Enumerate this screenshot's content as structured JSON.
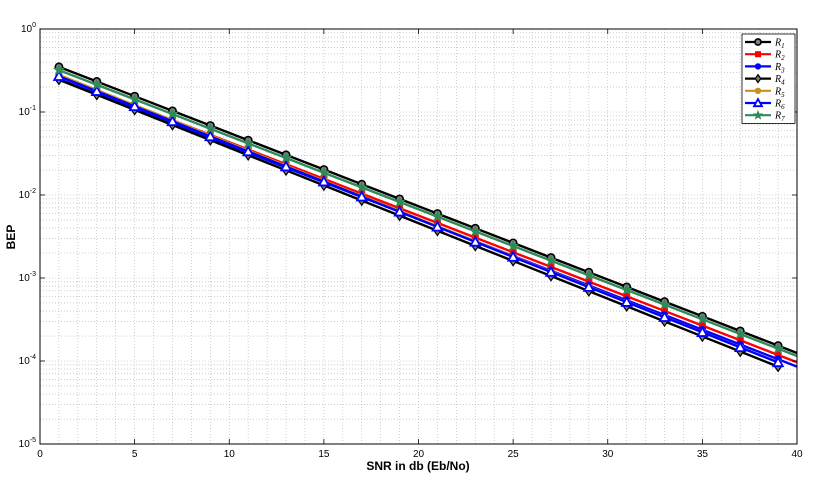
{
  "chart_data": {
    "type": "line",
    "title": "",
    "xlabel": "SNR in db (Eb/No)",
    "ylabel": "BEP",
    "xlim": [
      0,
      40
    ],
    "ylim": [
      1e-05,
      1
    ],
    "yscale": "log",
    "grid": true,
    "legend_position": "top-right",
    "x_ticks": [
      "0",
      "5",
      "10",
      "15",
      "20",
      "25",
      "30",
      "35",
      "40"
    ],
    "y_ticks": [
      {
        "base": "10",
        "exp": "0"
      },
      {
        "base": "10",
        "exp": "-1"
      },
      {
        "base": "10",
        "exp": "-2"
      },
      {
        "base": "10",
        "exp": "-3"
      },
      {
        "base": "10",
        "exp": "-4"
      },
      {
        "base": "10",
        "exp": "-5"
      }
    ],
    "x": [
      1,
      3,
      5,
      7,
      9,
      11,
      13,
      15,
      17,
      19,
      21,
      23,
      25,
      27,
      29,
      31,
      33,
      35,
      37,
      39,
      40
    ],
    "series": [
      {
        "name": "R",
        "sub": "1",
        "color": "#000000",
        "marker": "circle-open",
        "start_y": 0.35,
        "end_y": 0.000125,
        "x_end": 40
      },
      {
        "name": "R",
        "sub": "2",
        "color": "#ff0000",
        "marker": "square",
        "start_y": 0.27,
        "end_y": 9.65e-05,
        "x_end": 40
      },
      {
        "name": "R",
        "sub": "3",
        "color": "#0000ff",
        "marker": "circle",
        "start_y": 0.25,
        "end_y": 8.55e-05,
        "x_end": 40
      },
      {
        "name": "R",
        "sub": "4",
        "color": "#000000",
        "marker": "diamond",
        "start_y": 0.245,
        "end_y": 8.55e-05,
        "x_end": 39
      },
      {
        "name": "R",
        "sub": "5",
        "color": "#c8901e",
        "marker": "circle",
        "start_y": 0.28,
        "end_y": 9.62e-05,
        "x_end": 39
      },
      {
        "name": "R",
        "sub": "6",
        "color": "#0000ff",
        "marker": "triangle-open",
        "start_y": 0.27,
        "end_y": 9.62e-05,
        "x_end": 39
      },
      {
        "name": "R",
        "sub": "7",
        "color": "#2e8b57",
        "marker": "star",
        "start_y": 0.32,
        "end_y": 0.000115,
        "x_end": 40
      }
    ]
  }
}
